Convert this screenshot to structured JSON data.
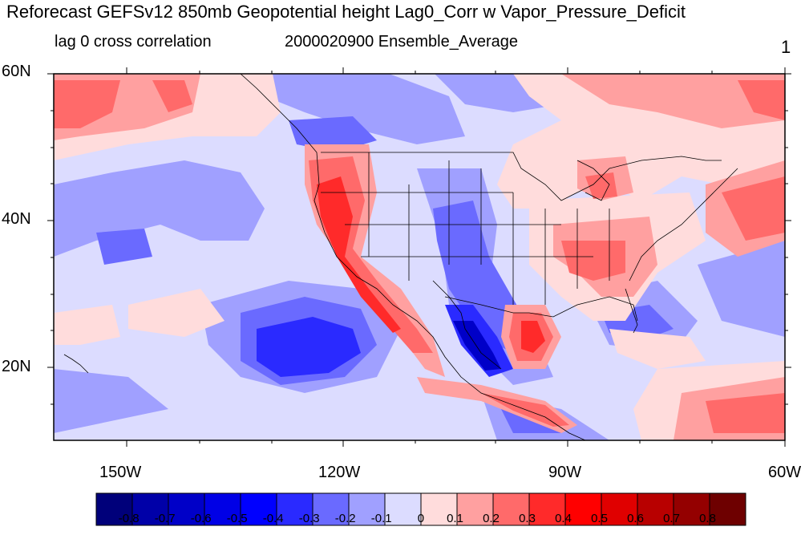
{
  "header": {
    "title": "Reforecast GEFSv12 850mb Geopotential height Lag0_Corr w Vapor_Pressure_Deficit",
    "left_subtitle": "lag 0 cross correlation",
    "center_subtitle": "2000020900 Ensemble_Average",
    "right_subtitle": "1"
  },
  "axes": {
    "lat_labels": [
      "60N",
      "40N",
      "20N"
    ],
    "lon_labels": [
      "150W",
      "120W",
      "90W",
      "60W"
    ]
  },
  "colorbar": {
    "labels": [
      "-0.8",
      "-0.7",
      "-0.6",
      "-0.5",
      "-0.4",
      "-0.3",
      "-0.2",
      "-0.1",
      "0",
      "0.1",
      "0.2",
      "0.3",
      "0.4",
      "0.5",
      "0.6",
      "0.7",
      "0.8"
    ],
    "colors": [
      "#00007a",
      "#0000a8",
      "#0000c8",
      "#0000e6",
      "#0000ff",
      "#2a2aff",
      "#6a6aff",
      "#a0a0ff",
      "#dcdcff",
      "#ffdcdc",
      "#ffa0a0",
      "#ff6a6a",
      "#ff2a2a",
      "#ff0000",
      "#e00000",
      "#b80000",
      "#940000",
      "#6e0000"
    ]
  },
  "map": {
    "region": "North America",
    "lat_range": [
      10,
      60
    ],
    "lon_range": [
      -160,
      -60
    ],
    "field": "correlation"
  }
}
